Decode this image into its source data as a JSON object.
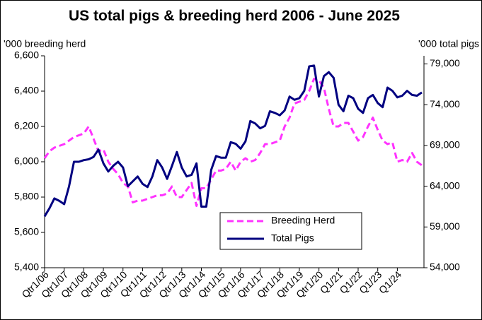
{
  "chart_data": {
    "type": "line",
    "title": "US total pigs & breeding herd 2006 - June 2025",
    "y_label": "'000 breeding herd",
    "y2_label": "'000 total pigs",
    "categories": [
      "Qtr1/06",
      null,
      null,
      null,
      "Qtr1/07",
      null,
      null,
      null,
      "Qtr1/08",
      null,
      null,
      null,
      "Qtr1/09",
      null,
      null,
      null,
      "Qtr1/10",
      null,
      null,
      null,
      "Qtr1/11",
      null,
      null,
      null,
      "Qtr1/12",
      null,
      null,
      null,
      "Qtr1/13",
      null,
      null,
      null,
      "Qtr1/14",
      null,
      null,
      null,
      "Qtr1/15",
      null,
      null,
      null,
      "Qtr1/16",
      null,
      null,
      null,
      "Qtr1/17",
      null,
      null,
      null,
      "Qtr1/18",
      null,
      null,
      null,
      "Qtr1/19",
      null,
      null,
      null,
      "Qtr1/20",
      null,
      null,
      null,
      "Q1/21",
      null,
      null,
      null,
      "Q1/22",
      null,
      null,
      null,
      "Q1/23",
      null,
      null,
      null,
      "Q1/24",
      null,
      null,
      null,
      null,
      null
    ],
    "series": [
      {
        "name": "Breeding Herd",
        "color": "#ff33ff",
        "dash": true,
        "axis": "y",
        "values": [
          6020,
          6060,
          6080,
          6090,
          6100,
          6120,
          6140,
          6150,
          6160,
          6200,
          6130,
          6060,
          6070,
          6000,
          5960,
          5930,
          5880,
          5860,
          5770,
          5780,
          5780,
          5790,
          5800,
          5810,
          5810,
          5820,
          5860,
          5800,
          5800,
          5840,
          5880,
          5750,
          5850,
          5850,
          5900,
          5950,
          5950,
          5960,
          6000,
          5950,
          6000,
          6020,
          6000,
          6010,
          6050,
          6100,
          6100,
          6110,
          6120,
          6200,
          6250,
          6330,
          6340,
          6350,
          6400,
          6470,
          6460,
          6420,
          6300,
          6200,
          6200,
          6220,
          6220,
          6170,
          6120,
          6140,
          6200,
          6250,
          6180,
          6120,
          6100,
          6110,
          6000,
          6010,
          6000,
          6050,
          6000,
          5980
        ]
      },
      {
        "name": "Total Pigs",
        "color": "#000080",
        "dash": false,
        "axis": "y2",
        "values": [
          60300,
          61300,
          62500,
          62200,
          61800,
          64000,
          67000,
          67000,
          67200,
          67300,
          67600,
          68500,
          66800,
          65800,
          66500,
          67000,
          66300,
          64000,
          64600,
          65200,
          64300,
          63900,
          65200,
          67200,
          66300,
          64900,
          66500,
          68200,
          66300,
          65200,
          65400,
          66800,
          61500,
          61500,
          66000,
          67700,
          67500,
          67500,
          69400,
          69200,
          68600,
          69500,
          72000,
          71700,
          71100,
          71400,
          73200,
          73000,
          72700,
          73300,
          75000,
          74600,
          74800,
          75700,
          78700,
          78800,
          75000,
          77500,
          78000,
          77300,
          74000,
          73200,
          75100,
          74800,
          73500,
          73000,
          74800,
          75200,
          74200,
          73700,
          76100,
          75700,
          74900,
          75100,
          75700,
          75200,
          75100,
          75500
        ]
      }
    ],
    "ylim": [
      5400,
      6600
    ],
    "yticks": [
      {
        "value": 5400,
        "label": "5,400"
      },
      {
        "value": 5600,
        "label": "5,600"
      },
      {
        "value": 5800,
        "label": "5,800"
      },
      {
        "value": 6000,
        "label": "6,000"
      },
      {
        "value": 6200,
        "label": "6,200"
      },
      {
        "value": 6400,
        "label": "6,400"
      },
      {
        "value": 6600,
        "label": "6,600"
      }
    ],
    "y2lim": [
      54000,
      80000
    ],
    "y2ticks": [
      {
        "value": 54000,
        "label": "54,000"
      },
      {
        "value": 59000,
        "label": "59,000"
      },
      {
        "value": 64000,
        "label": "64,000"
      },
      {
        "value": 69000,
        "label": "69,000"
      },
      {
        "value": 74000,
        "label": "74,000"
      },
      {
        "value": 79000,
        "label": "79,000"
      }
    ],
    "grid": false
  }
}
